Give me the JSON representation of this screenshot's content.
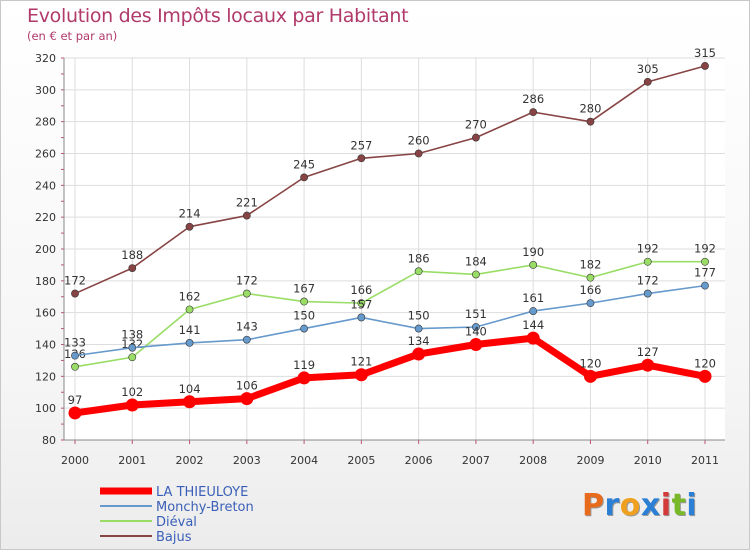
{
  "chart_data": {
    "type": "line",
    "title": "Evolution des Impôts locaux par Habitant",
    "subtitle": "(en € et par an)",
    "xlabel": "",
    "ylabel": "",
    "categories": [
      "2000",
      "2001",
      "2002",
      "2003",
      "2004",
      "2005",
      "2006",
      "2007",
      "2008",
      "2009",
      "2010",
      "2011"
    ],
    "ylim": [
      80,
      320
    ],
    "yticks": [
      80,
      100,
      120,
      140,
      160,
      180,
      200,
      220,
      240,
      260,
      280,
      300,
      320
    ],
    "grid": true,
    "legend_position": "bottom-left",
    "series": [
      {
        "name": "LA THIEULOYE",
        "color": "#ff0000",
        "values": [
          97,
          102,
          104,
          106,
          119,
          121,
          134,
          140,
          144,
          120,
          127,
          120
        ]
      },
      {
        "name": "Monchy-Breton",
        "color": "#6699cc",
        "values": [
          133,
          138,
          141,
          143,
          150,
          157,
          150,
          151,
          161,
          166,
          172,
          177
        ]
      },
      {
        "name": "Diéval",
        "color": "#99dd66",
        "values": [
          126,
          132,
          162,
          172,
          167,
          166,
          186,
          184,
          190,
          182,
          192,
          192
        ]
      },
      {
        "name": "Bajus",
        "color": "#884444",
        "values": [
          172,
          188,
          214,
          221,
          245,
          257,
          260,
          270,
          286,
          280,
          305,
          315
        ]
      }
    ]
  },
  "logo": {
    "letters": [
      "P",
      "r",
      "o",
      "x",
      "i",
      "t",
      "i"
    ],
    "colors": [
      "#e86a1c",
      "#2b7fd4",
      "#f0a020",
      "#2b7fd4",
      "#d43a3a",
      "#79b829",
      "#2b7fd4"
    ]
  }
}
